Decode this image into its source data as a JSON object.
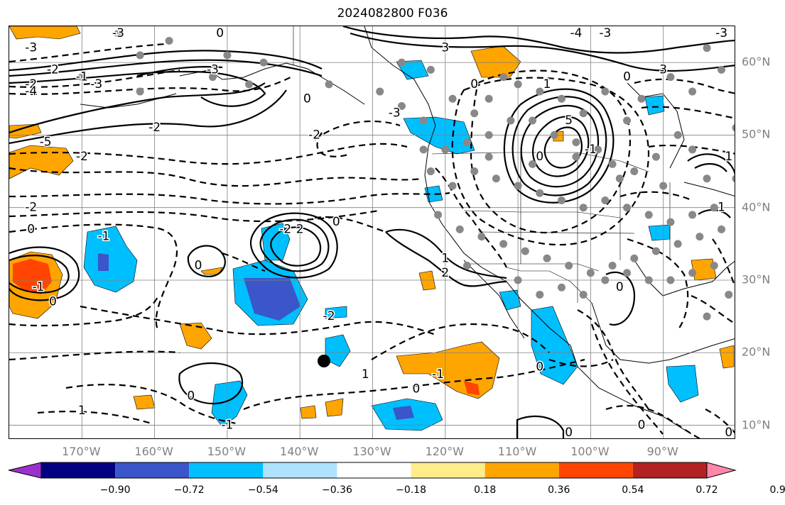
{
  "title": "2024082800 F036",
  "map": {
    "lon_labels": [
      "170°W",
      "160°W",
      "150°W",
      "140°W",
      "130°W",
      "120°W",
      "110°W",
      "100°W",
      "90°W"
    ],
    "lat_labels": [
      "60°N",
      "50°N",
      "40°N",
      "30°N",
      "20°N",
      "10°N"
    ],
    "grid_lon": [
      -170,
      -160,
      -150,
      -140,
      -130,
      -120,
      -110,
      -100,
      -90
    ],
    "grid_lat": [
      60,
      50,
      40,
      30,
      20,
      10
    ],
    "extent": {
      "lon": [
        -180,
        -80
      ],
      "lat": [
        8,
        65
      ]
    },
    "grid_color": "#808080",
    "contour_labels": [
      {
        "text": "-3",
        "lon": -177,
        "lat": 62
      },
      {
        "text": "-2",
        "lon": -174,
        "lat": 59
      },
      {
        "text": "-2",
        "lon": -177,
        "lat": 57
      },
      {
        "text": "-1",
        "lon": -170,
        "lat": 58
      },
      {
        "text": "-3",
        "lon": -168,
        "lat": 57
      },
      {
        "text": "-4",
        "lon": -177,
        "lat": 56
      },
      {
        "text": "-3",
        "lon": -165,
        "lat": 64
      },
      {
        "text": "0",
        "lon": -151,
        "lat": 64
      },
      {
        "text": "-3",
        "lon": -152,
        "lat": 59
      },
      {
        "text": "0",
        "lon": -139,
        "lat": 55
      },
      {
        "text": "-2",
        "lon": -160,
        "lat": 51
      },
      {
        "text": "-5",
        "lon": -175,
        "lat": 49
      },
      {
        "text": "-2",
        "lon": -170,
        "lat": 47
      },
      {
        "text": "-2",
        "lon": -138,
        "lat": 50
      },
      {
        "text": "-2",
        "lon": -177,
        "lat": 40
      },
      {
        "text": "0",
        "lon": -177,
        "lat": 37
      },
      {
        "text": "-1",
        "lon": -167,
        "lat": 36
      },
      {
        "text": "-2",
        "lon": -142,
        "lat": 37
      },
      {
        "text": "2",
        "lon": -140,
        "lat": 37
      },
      {
        "text": "0",
        "lon": -135,
        "lat": 38
      },
      {
        "text": "0",
        "lon": -154,
        "lat": 32
      },
      {
        "text": "-1",
        "lon": -176,
        "lat": 29
      },
      {
        "text": "0",
        "lon": -174,
        "lat": 27
      },
      {
        "text": "-2",
        "lon": -136,
        "lat": 25
      },
      {
        "text": "-3",
        "lon": -127,
        "lat": 53
      },
      {
        "text": "3",
        "lon": -120,
        "lat": 62
      },
      {
        "text": "0",
        "lon": -116,
        "lat": 57
      },
      {
        "text": "1",
        "lon": -106,
        "lat": 57
      },
      {
        "text": "5",
        "lon": -103,
        "lat": 52
      },
      {
        "text": "0",
        "lon": -107,
        "lat": 47
      },
      {
        "text": "1",
        "lon": -120,
        "lat": 33
      },
      {
        "text": "2",
        "lon": -120,
        "lat": 31
      },
      {
        "text": "1",
        "lon": -131,
        "lat": 17
      },
      {
        "text": "-1",
        "lon": -121,
        "lat": 17
      },
      {
        "text": "0",
        "lon": -124,
        "lat": 15
      },
      {
        "text": "0",
        "lon": -155,
        "lat": 14
      },
      {
        "text": "1",
        "lon": -170,
        "lat": 12
      },
      {
        "text": "-1",
        "lon": -150,
        "lat": 10
      },
      {
        "text": "0",
        "lon": -107,
        "lat": 18
      },
      {
        "text": "0",
        "lon": -96,
        "lat": 29
      },
      {
        "text": "0",
        "lon": -103,
        "lat": 9
      },
      {
        "text": "0",
        "lon": -93,
        "lat": 10
      },
      {
        "text": "0",
        "lon": -95,
        "lat": 58
      },
      {
        "text": "3",
        "lon": -90,
        "lat": 59
      },
      {
        "text": "-3",
        "lon": -98,
        "lat": 64
      },
      {
        "text": "-4",
        "lon": -102,
        "lat": 64
      },
      {
        "text": "-3",
        "lon": -82,
        "lat": 64
      },
      {
        "text": "1",
        "lon": -81,
        "lat": 47
      },
      {
        "text": "1",
        "lon": -82,
        "lat": 40
      },
      {
        "text": "-1",
        "lon": -100,
        "lat": 48
      },
      {
        "text": "0",
        "lon": -81,
        "lat": 9
      }
    ]
  },
  "colorbar": {
    "labels": [
      "−0.90",
      "−0.72",
      "−0.54",
      "−0.36",
      "−0.18",
      "0.18",
      "0.36",
      "0.54",
      "0.72",
      "0.90"
    ],
    "colors": [
      "#9932cc",
      "#000080",
      "#3a56c8",
      "#00bfff",
      "#aee2ff",
      "#ffffff",
      "#ffec8b",
      "#ffa500",
      "#ff4500",
      "#b22222",
      "#ff88aa"
    ]
  }
}
